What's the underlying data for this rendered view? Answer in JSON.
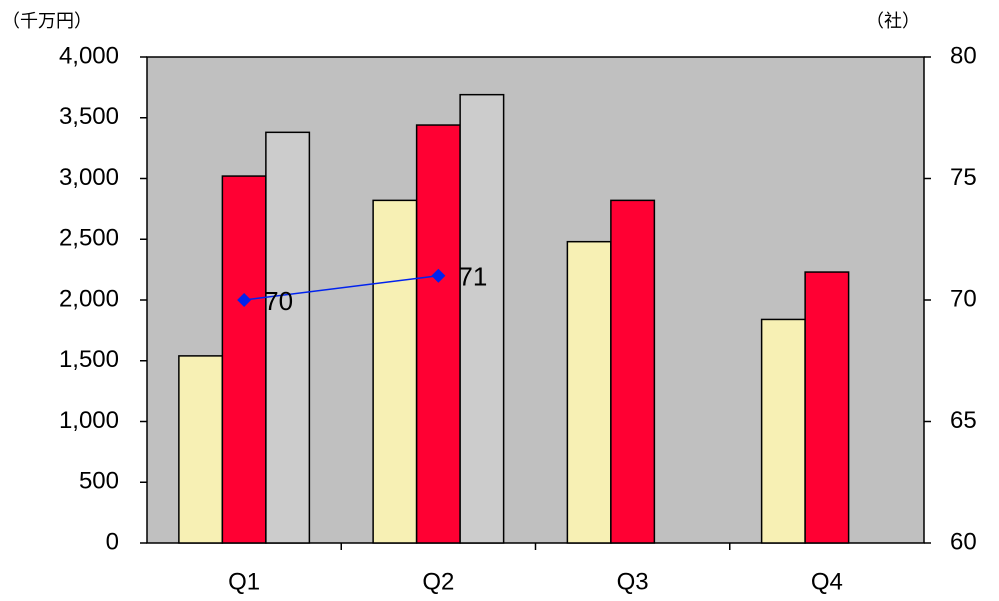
{
  "chart_data": {
    "type": "bar",
    "y_unit_label": "（千万円）",
    "y2_unit_label": "（社）",
    "categories": [
      "Q1",
      "Q2",
      "Q3",
      "Q4"
    ],
    "series": [
      {
        "color": "#f7f0b4",
        "values": [
          1540,
          2820,
          2480,
          1840
        ]
      },
      {
        "color": "#ff0033",
        "values": [
          3020,
          3440,
          2820,
          2230
        ]
      },
      {
        "color": "#cccccc",
        "values": [
          3380,
          3690,
          null,
          null
        ]
      },
      {
        "type": "line",
        "axis": "y2",
        "color": "#0022ee",
        "values": [
          70,
          71,
          null,
          null
        ],
        "data_labels": true
      }
    ],
    "ylim": [
      0,
      4000
    ],
    "yticks": [
      {
        "value": 0,
        "label": "0"
      },
      {
        "value": 500,
        "label": "500"
      },
      {
        "value": 1000,
        "label": "1,000"
      },
      {
        "value": 1500,
        "label": "1,500"
      },
      {
        "value": 2000,
        "label": "2,000"
      },
      {
        "value": 2500,
        "label": "2,500"
      },
      {
        "value": 3000,
        "label": "3,000"
      },
      {
        "value": 3500,
        "label": "3,500"
      },
      {
        "value": 4000,
        "label": "4,000"
      }
    ],
    "y2lim": [
      60,
      80
    ],
    "y2ticks": [
      60,
      65,
      70,
      75,
      80
    ],
    "plot_background": "#c0c0c0"
  }
}
